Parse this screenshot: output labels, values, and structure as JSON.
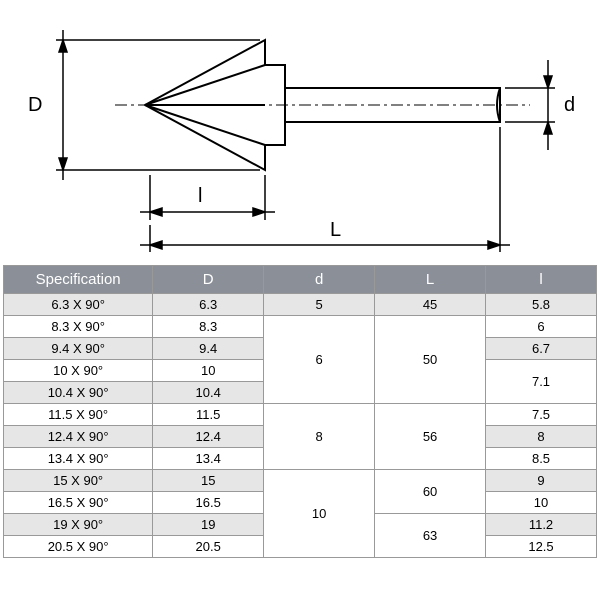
{
  "diagram": {
    "labels": {
      "D": "D",
      "d": "d",
      "L": "L",
      "l": "l"
    },
    "stroke": "#000000",
    "stroke_width": 2
  },
  "table": {
    "header_bg": "#8a8f98",
    "header_fg": "#ffffff",
    "row_odd_bg": "#e6e6e6",
    "row_even_bg": "#ffffff",
    "columns": [
      "Specification",
      "D",
      "d",
      "L",
      "l"
    ],
    "rows": [
      {
        "spec": "6.3 X 90°",
        "D": "6.3",
        "d": "5",
        "L": "45",
        "l": "5.8"
      },
      {
        "spec": "8.3 X 90°",
        "D": "8.3",
        "d": "6",
        "L": "50",
        "l": "6"
      },
      {
        "spec": "9.4 X 90°",
        "D": "9.4",
        "d": "6",
        "L": "50",
        "l": "6.7"
      },
      {
        "spec": "10 X 90°",
        "D": "10",
        "d": "6",
        "L": "50",
        "l": "7.1"
      },
      {
        "spec": "10.4 X 90°",
        "D": "10.4",
        "d": "6",
        "L": "50",
        "l": "7.1"
      },
      {
        "spec": "11.5 X 90°",
        "D": "11.5",
        "d": "8",
        "L": "56",
        "l": "7.5"
      },
      {
        "spec": "12.4 X 90°",
        "D": "12.4",
        "d": "8",
        "L": "56",
        "l": "8"
      },
      {
        "spec": "13.4 X 90°",
        "D": "13.4",
        "d": "8",
        "L": "56",
        "l": "8.5"
      },
      {
        "spec": "15 X 90°",
        "D": "15",
        "d": "10",
        "L": "60",
        "l": "9"
      },
      {
        "spec": "16.5 X 90°",
        "D": "16.5",
        "d": "10",
        "L": "60",
        "l": "10"
      },
      {
        "spec": "19 X 90°",
        "D": "19",
        "d": "10",
        "L": "63",
        "l": "11.2"
      },
      {
        "spec": "20.5 X 90°",
        "D": "20.5",
        "d": "10",
        "L": "63",
        "l": "12.5"
      }
    ],
    "d_merges": [
      [
        0,
        1
      ],
      [
        1,
        4
      ],
      [
        5,
        3
      ],
      [
        8,
        4
      ]
    ],
    "L_merges": [
      [
        0,
        1
      ],
      [
        1,
        4
      ],
      [
        5,
        3
      ],
      [
        8,
        2
      ],
      [
        10,
        2
      ]
    ],
    "l_merges": [
      [
        3,
        2
      ]
    ]
  }
}
